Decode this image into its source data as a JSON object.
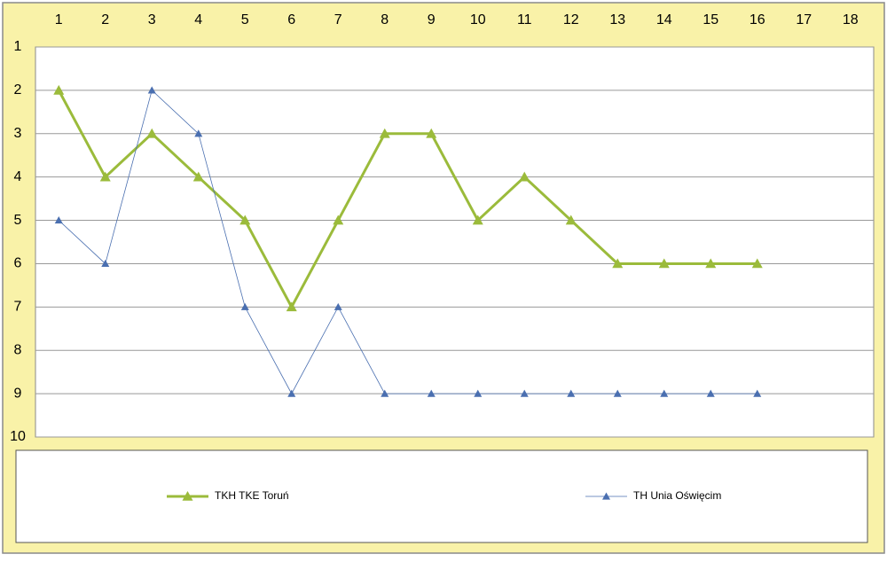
{
  "chart_data": {
    "type": "line",
    "categories": [
      1,
      2,
      3,
      4,
      5,
      6,
      7,
      8,
      9,
      10,
      11,
      12,
      13,
      14,
      15,
      16,
      17,
      18
    ],
    "series": [
      {
        "name": "TKH TKE Toruń",
        "color": "#9bbb3b",
        "values": [
          2,
          4,
          3,
          4,
          5,
          7,
          5,
          3,
          3,
          5,
          4,
          5,
          6,
          6,
          6,
          6,
          null,
          null
        ]
      },
      {
        "name": "TH Unia Oświęcim",
        "color": "#4a6fb0",
        "values": [
          5,
          6,
          2,
          3,
          7,
          9,
          7,
          9,
          9,
          9,
          9,
          9,
          9,
          9,
          9,
          9,
          null,
          null
        ]
      }
    ],
    "ylim": [
      10,
      1
    ],
    "yticks": [
      1,
      2,
      3,
      4,
      5,
      6,
      7,
      8,
      9,
      10
    ],
    "grid": true,
    "legend": "bottom"
  }
}
